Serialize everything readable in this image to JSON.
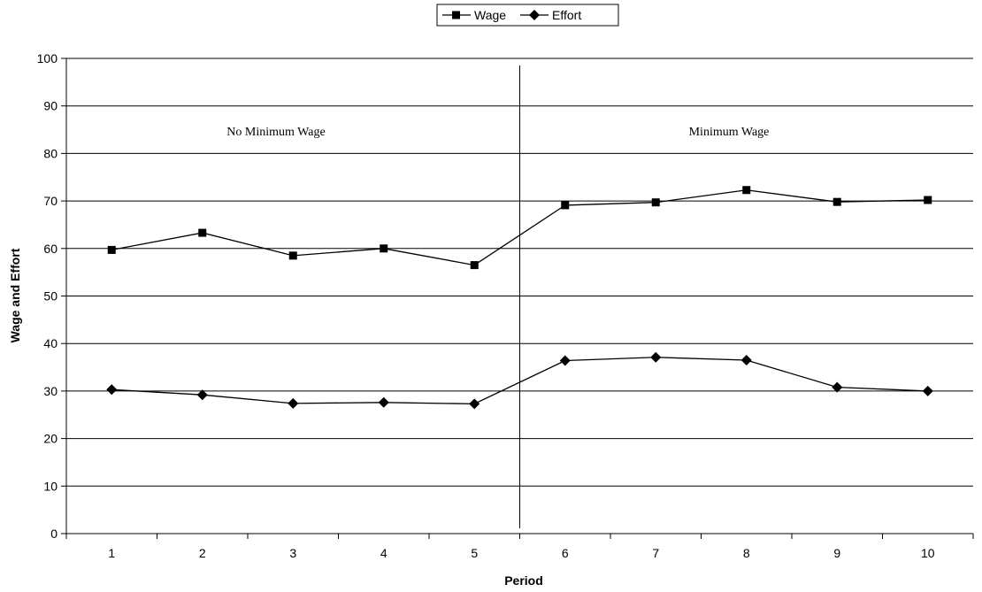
{
  "chart_data": {
    "type": "line",
    "title": "",
    "xlabel": "Period",
    "ylabel": "Wage and Effort",
    "categories": [
      "1",
      "2",
      "3",
      "4",
      "5",
      "6",
      "7",
      "8",
      "9",
      "10"
    ],
    "ylim": [
      0,
      100
    ],
    "yticks": [
      "0",
      "10",
      "20",
      "30",
      "40",
      "50",
      "60",
      "70",
      "80",
      "90",
      "100"
    ],
    "grid": "horizontal",
    "legend_position": "top-center",
    "series": [
      {
        "name": "Wage",
        "marker": "square",
        "color": "#000000",
        "values": [
          59.7,
          63.3,
          58.5,
          60.0,
          56.5,
          69.1,
          69.7,
          72.3,
          69.8,
          70.2
        ]
      },
      {
        "name": "Effort",
        "marker": "diamond",
        "color": "#000000",
        "values": [
          30.3,
          29.2,
          27.4,
          27.6,
          27.3,
          36.4,
          37.1,
          36.5,
          30.8,
          30.0
        ]
      }
    ],
    "annotations": {
      "left_region": "No Minimum Wage",
      "right_region": "Minimum Wage"
    },
    "divider_between_categories": [
      "5",
      "6"
    ]
  }
}
